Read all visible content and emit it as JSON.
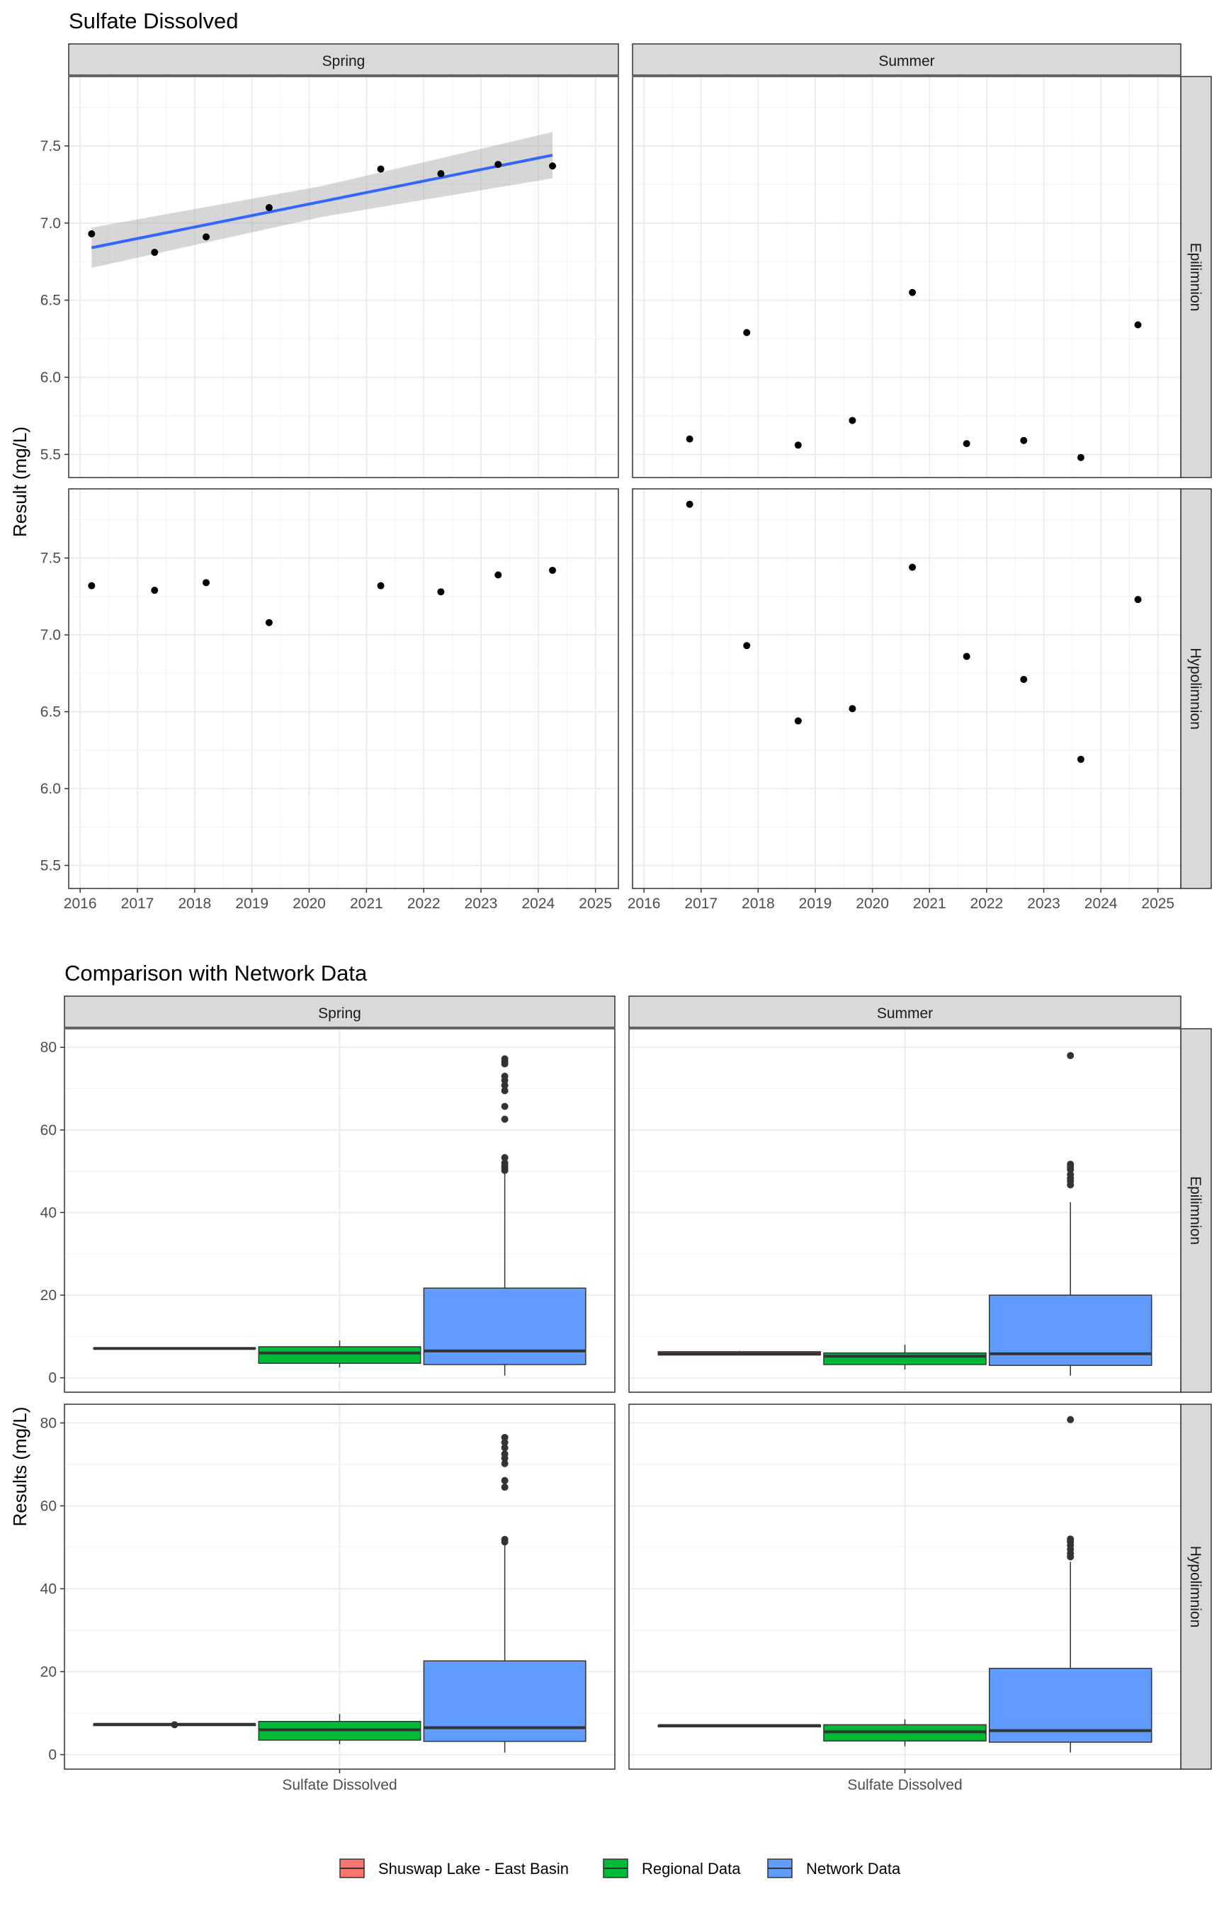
{
  "chart_data": [
    {
      "type": "scatter",
      "title": "Sulfate Dissolved",
      "ylabel": "Result (mg/L)",
      "xlabel": "",
      "x_ticks": [
        "2016",
        "2017",
        "2018",
        "2019",
        "2020",
        "2021",
        "2022",
        "2023",
        "2024",
        "2025"
      ],
      "y_ticks": [
        "5.5",
        "6.0",
        "6.5",
        "7.0",
        "7.5"
      ],
      "xlim": [
        2015.8,
        2025.4
      ],
      "ylim": [
        5.35,
        7.95
      ],
      "grid": true,
      "panels": [
        {
          "col": "Spring",
          "row": "Epilimnion",
          "points": [
            {
              "x": 2016.2,
              "y": 6.93
            },
            {
              "x": 2017.3,
              "y": 6.81
            },
            {
              "x": 2018.2,
              "y": 6.91
            },
            {
              "x": 2019.3,
              "y": 7.1
            },
            {
              "x": 2021.25,
              "y": 7.35
            },
            {
              "x": 2022.3,
              "y": 7.32
            },
            {
              "x": 2023.3,
              "y": 7.38
            },
            {
              "x": 2024.25,
              "y": 7.37
            }
          ],
          "trend": {
            "x0": 2016.2,
            "y0": 6.84,
            "x1": 2024.25,
            "y1": 7.44,
            "band_lo0": 6.71,
            "band_hi0": 6.97,
            "band_lo1": 7.29,
            "band_hi1": 7.59,
            "color": "#3366FF"
          }
        },
        {
          "col": "Summer",
          "row": "Epilimnion",
          "points": [
            {
              "x": 2016.8,
              "y": 5.6
            },
            {
              "x": 2017.8,
              "y": 6.29
            },
            {
              "x": 2018.7,
              "y": 5.56
            },
            {
              "x": 2019.65,
              "y": 5.72
            },
            {
              "x": 2020.7,
              "y": 6.55
            },
            {
              "x": 2021.65,
              "y": 5.57
            },
            {
              "x": 2022.65,
              "y": 5.59
            },
            {
              "x": 2023.65,
              "y": 5.48
            },
            {
              "x": 2024.65,
              "y": 6.34
            }
          ]
        },
        {
          "col": "Spring",
          "row": "Hypolimnion",
          "points": [
            {
              "x": 2016.2,
              "y": 7.32
            },
            {
              "x": 2017.3,
              "y": 7.29
            },
            {
              "x": 2018.2,
              "y": 7.34
            },
            {
              "x": 2019.3,
              "y": 7.08
            },
            {
              "x": 2021.25,
              "y": 7.32
            },
            {
              "x": 2022.3,
              "y": 7.28
            },
            {
              "x": 2023.3,
              "y": 7.39
            },
            {
              "x": 2024.25,
              "y": 7.42
            }
          ]
        },
        {
          "col": "Summer",
          "row": "Hypolimnion",
          "points": [
            {
              "x": 2016.8,
              "y": 7.85
            },
            {
              "x": 2017.8,
              "y": 6.93
            },
            {
              "x": 2018.7,
              "y": 6.44
            },
            {
              "x": 2019.65,
              "y": 6.52
            },
            {
              "x": 2020.7,
              "y": 7.44
            },
            {
              "x": 2021.65,
              "y": 6.86
            },
            {
              "x": 2022.65,
              "y": 6.71
            },
            {
              "x": 2023.65,
              "y": 6.19
            },
            {
              "x": 2024.65,
              "y": 7.23
            }
          ]
        }
      ]
    },
    {
      "type": "box",
      "title": "Comparison with Network Data",
      "ylabel": "Results (mg/L)",
      "category": "Sulfate Dissolved",
      "y_ticks": [
        "0",
        "20",
        "40",
        "60",
        "80"
      ],
      "ylim": [
        -3.5,
        84.5
      ],
      "grid": true,
      "legend_position": "bottom",
      "legend": [
        {
          "name": "Shuswap Lake - East Basin",
          "color": "#F8766D"
        },
        {
          "name": "Regional Data",
          "color": "#00BA38"
        },
        {
          "name": "Network Data",
          "color": "#619CFF"
        }
      ],
      "panels": [
        {
          "col": "Spring",
          "row": "Epilimnion",
          "boxes": [
            {
              "group": "Shuswap Lake - East Basin",
              "min": 7.0,
              "q1": 7.0,
              "median": 7.1,
              "q3": 7.2,
              "max": 7.2,
              "outliers": []
            },
            {
              "group": "Regional Data",
              "min": 2.5,
              "q1": 3.5,
              "median": 6.0,
              "q3": 7.5,
              "max": 9.0,
              "outliers": []
            },
            {
              "group": "Network Data",
              "min": 0.5,
              "q1": 3.2,
              "median": 6.5,
              "q3": 21.7,
              "max": 49.5,
              "outliers": [
                50.2,
                50.8,
                51.3,
                52.0,
                53.3,
                62.6,
                65.7,
                69.5,
                70.8,
                72.0,
                73.0,
                76.0,
                76.6,
                77.2
              ]
            }
          ]
        },
        {
          "col": "Summer",
          "row": "Epilimnion",
          "boxes": [
            {
              "group": "Shuswap Lake - East Basin",
              "min": 5.5,
              "q1": 5.5,
              "median": 5.8,
              "q3": 6.3,
              "max": 6.5,
              "outliers": []
            },
            {
              "group": "Regional Data",
              "min": 2.0,
              "q1": 3.2,
              "median": 5.2,
              "q3": 6.0,
              "max": 8.0,
              "outliers": []
            },
            {
              "group": "Network Data",
              "min": 0.5,
              "q1": 3.0,
              "median": 5.8,
              "q3": 20.0,
              "max": 42.5,
              "outliers": [
                46.7,
                47.6,
                48.3,
                49.2,
                50.4,
                51.1,
                51.7,
                78.0
              ]
            }
          ]
        },
        {
          "col": "Spring",
          "row": "Hypolimnion",
          "boxes": [
            {
              "group": "Shuswap Lake - East Basin",
              "min": 7.0,
              "q1": 7.0,
              "median": 7.3,
              "q3": 7.4,
              "max": 7.4,
              "outliers": [
                7.2
              ]
            },
            {
              "group": "Regional Data",
              "min": 2.5,
              "q1": 3.5,
              "median": 6.0,
              "q3": 8.0,
              "max": 9.8,
              "outliers": []
            },
            {
              "group": "Network Data",
              "min": 0.5,
              "q1": 3.2,
              "median": 6.5,
              "q3": 22.6,
              "max": 51.0,
              "outliers": [
                51.3,
                51.9,
                64.5,
                66.1,
                70.2,
                71.5,
                72.5,
                74.0,
                75.3,
                76.5
              ]
            }
          ]
        },
        {
          "col": "Summer",
          "row": "Hypolimnion",
          "boxes": [
            {
              "group": "Shuswap Lake - East Basin",
              "min": 6.7,
              "q1": 6.7,
              "median": 7.0,
              "q3": 7.1,
              "max": 7.1,
              "outliers": []
            },
            {
              "group": "Regional Data",
              "min": 2.0,
              "q1": 3.3,
              "median": 5.5,
              "q3": 7.2,
              "max": 8.5,
              "outliers": []
            },
            {
              "group": "Network Data",
              "min": 0.5,
              "q1": 3.0,
              "median": 5.8,
              "q3": 20.8,
              "max": 46.5,
              "outliers": [
                47.7,
                48.5,
                49.5,
                50.5,
                51.3,
                52.0,
                80.8
              ]
            }
          ]
        }
      ]
    }
  ]
}
